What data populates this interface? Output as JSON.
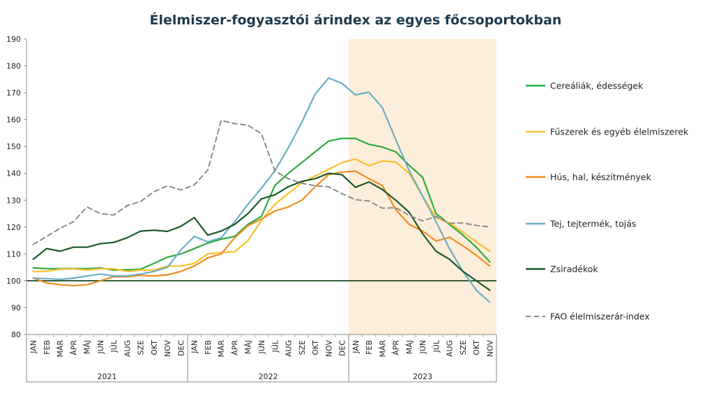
{
  "chart_data": {
    "type": "line",
    "title": "Élelmiszer-fogyasztói árindex az egyes főcsoportokban",
    "xlabel": "",
    "ylabel": "",
    "ylim": [
      80,
      190
    ],
    "yticks": [
      "80",
      "90",
      "100",
      "110",
      "120",
      "130",
      "140",
      "150",
      "160",
      "170",
      "180",
      "190"
    ],
    "x": [
      "JAN",
      "FEB",
      "MÁR",
      "ÁPR",
      "MÁJ",
      "JÚN",
      "JÚL",
      "AUG",
      "SZE",
      "OKT",
      "NOV",
      "DEC",
      "JAN",
      "FEB",
      "MÁR",
      "ÁPR",
      "MÁJ",
      "JÚN",
      "JÚL",
      "AUG",
      "SZE",
      "OKT",
      "NOV",
      "DEC",
      "JAN",
      "FEB",
      "MÁR",
      "ÁPR",
      "MÁJ",
      "JÚN",
      "JÚL",
      "AUG",
      "SZE",
      "OKT",
      "NOV"
    ],
    "year_groups": [
      {
        "label": "2021",
        "months": 12
      },
      {
        "label": "2022",
        "months": 12
      },
      {
        "label": "2023",
        "months": 11
      }
    ],
    "highlight": {
      "from_index": 24,
      "to_index": 34,
      "color": "#fdeedb"
    },
    "reference_line": {
      "value": 100,
      "color": "#1a4a22"
    },
    "legend_position": "right",
    "series": [
      {
        "name": "Cereáliák, édességek",
        "color": "#2eaa3e",
        "dash": false,
        "values": [
          104.8,
          104.5,
          104.5,
          104.6,
          104.5,
          104.8,
          104.0,
          104.1,
          104.3,
          106.5,
          108.8,
          110.0,
          112.0,
          114.0,
          115.5,
          116.5,
          121.0,
          124.0,
          135.5,
          140.0,
          144.0,
          148.0,
          152.0,
          153.0,
          153.0,
          150.8,
          149.8,
          148.0,
          143.0,
          138.5,
          125.0,
          121.0,
          117.0,
          112.5,
          107.0
        ]
      },
      {
        "name": "Fűszerek és egyéb élelmiszerek",
        "color": "#f7bf2a",
        "dash": false,
        "values": [
          103.5,
          103.5,
          104.3,
          104.5,
          104.0,
          104.5,
          104.5,
          103.5,
          104.0,
          104.0,
          105.5,
          105.5,
          106.5,
          110.0,
          110.5,
          110.8,
          115.0,
          122.5,
          128.5,
          132.5,
          136.5,
          139.0,
          141.5,
          144.0,
          145.3,
          142.8,
          144.6,
          144.2,
          140.0,
          131.5,
          123.5,
          121.5,
          118.0,
          114.5,
          111.0
        ]
      },
      {
        "name": "Hús, hal, készítmények",
        "color": "#f08c1e",
        "dash": false,
        "values": [
          101.0,
          99.2,
          98.5,
          98.2,
          98.5,
          100.0,
          101.5,
          101.5,
          102.0,
          101.8,
          102.2,
          103.5,
          105.5,
          108.5,
          110.0,
          116.0,
          120.5,
          123.0,
          126.0,
          127.5,
          130.0,
          135.0,
          139.5,
          140.5,
          140.8,
          138.0,
          135.5,
          126.5,
          121.0,
          118.5,
          114.8,
          116.2,
          113.0,
          109.5,
          105.5
        ]
      },
      {
        "name": "Tej, tejtermék, tojás",
        "color": "#6aaec6",
        "dash": false,
        "values": [
          101.0,
          100.8,
          100.5,
          101.0,
          101.8,
          102.5,
          101.8,
          101.8,
          102.5,
          103.5,
          105.0,
          111.5,
          116.5,
          114.5,
          116.0,
          122.0,
          128.5,
          134.5,
          141.0,
          149.5,
          159.0,
          169.5,
          175.5,
          173.5,
          169.2,
          170.2,
          164.5,
          152.5,
          141.0,
          131.5,
          122.0,
          112.0,
          103.5,
          96.5,
          92.0
        ]
      },
      {
        "name": "Zsiradékok",
        "color": "#1b5a27",
        "dash": false,
        "values": [
          108.0,
          112.0,
          111.0,
          112.5,
          112.5,
          113.8,
          114.3,
          116.0,
          118.5,
          118.8,
          118.4,
          120.3,
          123.5,
          117.0,
          118.5,
          121.0,
          125.0,
          130.5,
          132.0,
          135.0,
          137.0,
          138.0,
          140.0,
          139.5,
          134.8,
          136.8,
          134.0,
          130.0,
          125.5,
          117.5,
          111.0,
          108.0,
          103.5,
          100.0,
          96.5
        ]
      },
      {
        "name": "FAO élelmiszerár-index",
        "color": "#8a8a8a",
        "dash": true,
        "values": [
          113.5,
          116.5,
          119.5,
          122.0,
          127.5,
          125.0,
          124.5,
          128.0,
          129.5,
          133.2,
          135.3,
          133.8,
          135.7,
          141.2,
          159.7,
          158.5,
          157.9,
          154.7,
          140.9,
          138.0,
          136.3,
          135.4,
          135.0,
          132.4,
          130.2,
          129.7,
          127.0,
          127.2,
          124.3,
          122.3,
          123.9,
          121.4,
          121.5,
          120.6,
          120.0
        ]
      }
    ]
  }
}
